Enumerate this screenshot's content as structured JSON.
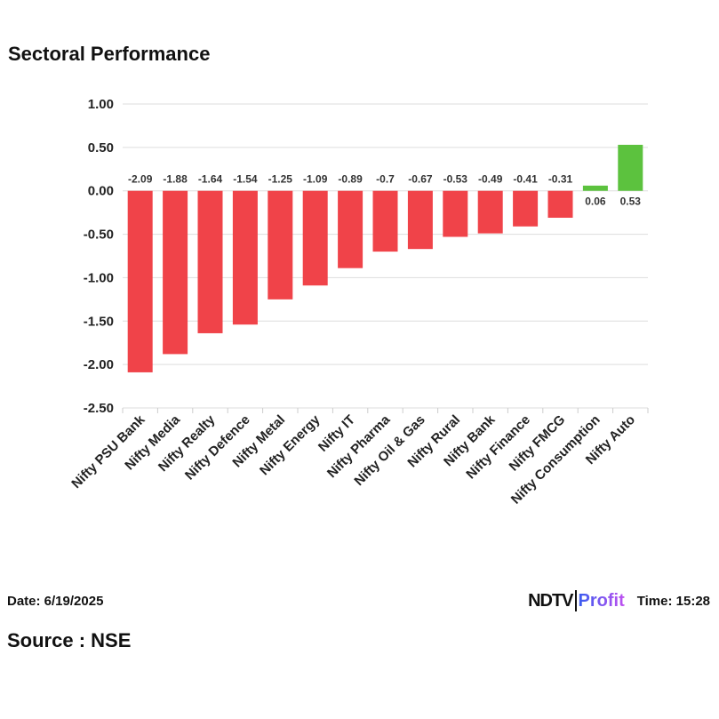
{
  "header": {
    "title": "Sectoral Performance"
  },
  "footer": {
    "date": "Date: 6/19/2025",
    "source": "Source : NSE",
    "time": "Time: 15:28",
    "logo_text": "NDTV Profit"
  },
  "colors": {
    "negative": "#f04349",
    "positive": "#5cc23e"
  },
  "chart_data": {
    "type": "bar",
    "title": "Sectoral Performance",
    "categories": [
      "Nifty PSU Bank",
      "Nifty Media",
      "Nifty Realty",
      "Nifty Defence",
      "Nifty Metal",
      "Nifty Energy",
      "Nifty IT",
      "Nifty Pharma",
      "Nifty Oil & Gas",
      "Nifty Rural",
      "Nifty Bank",
      "Nifty Finance",
      "Nifty FMCG",
      "Nifty Consumption",
      "Nifty Auto"
    ],
    "values": [
      -2.09,
      -1.88,
      -1.64,
      -1.54,
      -1.25,
      -1.09,
      -0.89,
      -0.7,
      -0.67,
      -0.53,
      -0.49,
      -0.41,
      -0.31,
      0.06,
      0.53
    ],
    "data_labels": [
      "-2.09",
      "-1.88",
      "-1.64",
      "-1.54",
      "-1.25",
      "-1.09",
      "-0.89",
      "-0.7",
      "-0.67",
      "-0.53",
      "-0.49",
      "-0.41",
      "-0.31",
      "0.06",
      "0.53"
    ],
    "yticks": [
      "1.00",
      "0.50",
      "0.00",
      "-0.50",
      "-1.00",
      "-1.50",
      "-2.00",
      "-2.50"
    ],
    "ylim": [
      -2.5,
      1.0
    ],
    "grid": true,
    "xlabel": "",
    "ylabel": ""
  }
}
